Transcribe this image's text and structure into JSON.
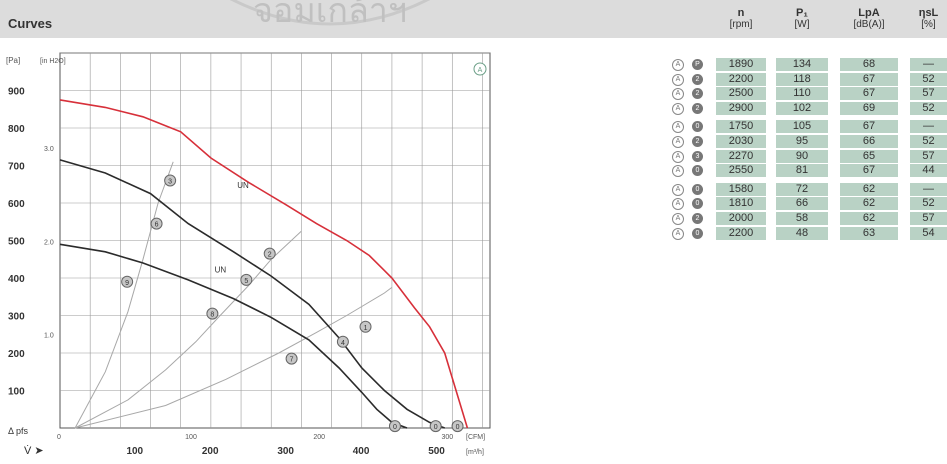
{
  "section_title": "Curves",
  "watermark_text": "จอมเกล้าฯ",
  "chart_data": {
    "type": "line",
    "title": "",
    "ylabel_left": "Δ pfs",
    "ylabel_unit_pa": "[Pa]",
    "ylabel_unit_inh2o": "[in H2O]",
    "xlabel_symbol": "V̇",
    "x_unit_cfm": "[CFM]",
    "x_unit_m3h": "[m³/h]",
    "xlim_m3h": [
      0,
      570
    ],
    "ylim_pa": [
      0,
      1000
    ],
    "y_ticks_pa": [
      "100",
      "200",
      "300",
      "400",
      "500",
      "600",
      "700",
      "800",
      "900"
    ],
    "y_ticks_inh2o": [
      "1.0",
      "2.0",
      "3.0"
    ],
    "x_ticks_m3h": [
      "100",
      "200",
      "300",
      "400",
      "500"
    ],
    "x_ticks_cfm": [
      "0",
      "100",
      "200",
      "300"
    ],
    "grid": true,
    "region_label": "A",
    "curve_labels": [
      "UN",
      "UN"
    ],
    "series": [
      {
        "name": "",
        "color": "#d7303a",
        "x": [
          0,
          60,
          110,
          160,
          200,
          250,
          300,
          340,
          380,
          410,
          440,
          470,
          490,
          510,
          540
        ],
        "y": [
          875,
          855,
          830,
          790,
          720,
          655,
          595,
          545,
          500,
          460,
          400,
          320,
          270,
          200,
          0
        ]
      },
      {
        "name": "",
        "color": "#2b2b2b",
        "x": [
          0,
          60,
          120,
          170,
          230,
          280,
          330,
          370,
          400,
          430,
          460,
          490,
          510
        ],
        "y": [
          715,
          680,
          625,
          545,
          470,
          405,
          330,
          240,
          160,
          100,
          50,
          15,
          0
        ]
      },
      {
        "name": "",
        "color": "#2b2b2b",
        "x": [
          0,
          60,
          110,
          170,
          230,
          280,
          330,
          370,
          400,
          420,
          440,
          460
        ],
        "y": [
          490,
          470,
          440,
          395,
          345,
          295,
          235,
          160,
          95,
          50,
          15,
          0
        ]
      }
    ],
    "system_curves": [
      {
        "x": [
          20,
          60,
          90,
          110,
          130,
          150
        ],
        "y": [
          0,
          150,
          310,
          450,
          600,
          710
        ]
      },
      {
        "x": [
          20,
          90,
          140,
          180,
          210,
          250,
          280,
          320
        ],
        "y": [
          0,
          75,
          155,
          230,
          295,
          380,
          450,
          525
        ]
      },
      {
        "x": [
          20,
          140,
          220,
          290,
          340,
          380,
          430,
          440
        ],
        "y": [
          0,
          60,
          130,
          200,
          255,
          300,
          360,
          375
        ]
      }
    ],
    "markers": [
      {
        "label": "3",
        "x": 146,
        "y": 660
      },
      {
        "label": "6",
        "x": 128,
        "y": 545
      },
      {
        "label": "9",
        "x": 89,
        "y": 390
      },
      {
        "label": "2",
        "x": 278,
        "y": 465
      },
      {
        "label": "5",
        "x": 247,
        "y": 395
      },
      {
        "label": "8",
        "x": 202,
        "y": 305
      },
      {
        "label": "1",
        "x": 405,
        "y": 270
      },
      {
        "label": "4",
        "x": 375,
        "y": 230
      },
      {
        "label": "7",
        "x": 307,
        "y": 185
      },
      {
        "label": "0",
        "x": 527,
        "y": 5
      },
      {
        "label": "0",
        "x": 498,
        "y": 5
      },
      {
        "label": "0",
        "x": 444,
        "y": 5
      }
    ]
  },
  "table": {
    "headers": [
      {
        "title": "n",
        "unit": "[rpm]"
      },
      {
        "title": "P₁",
        "unit": "[W]"
      },
      {
        "title": "LpA",
        "unit": "[dB(A)]"
      },
      {
        "title": "ηsL",
        "unit": "[%]"
      }
    ],
    "rows": [
      {
        "marker": "P",
        "n": "1890",
        "p": "134",
        "lpa": "68",
        "eta": "—"
      },
      {
        "marker": "2",
        "n": "2200",
        "p": "118",
        "lpa": "67",
        "eta": "52"
      },
      {
        "marker": "2",
        "n": "2500",
        "p": "110",
        "lpa": "67",
        "eta": "57"
      },
      {
        "marker": "2",
        "n": "2900",
        "p": "102",
        "lpa": "69",
        "eta": "52"
      },
      {
        "marker": "0",
        "n": "1750",
        "p": "105",
        "lpa": "67",
        "eta": "—"
      },
      {
        "marker": "2",
        "n": "2030",
        "p": "95",
        "lpa": "66",
        "eta": "52"
      },
      {
        "marker": "3",
        "n": "2270",
        "p": "90",
        "lpa": "65",
        "eta": "57"
      },
      {
        "marker": "0",
        "n": "2550",
        "p": "81",
        "lpa": "67",
        "eta": "44"
      },
      {
        "marker": "0",
        "n": "1580",
        "p": "72",
        "lpa": "62",
        "eta": "—"
      },
      {
        "marker": "0",
        "n": "1810",
        "p": "66",
        "lpa": "62",
        "eta": "52"
      },
      {
        "marker": "2",
        "n": "2000",
        "p": "58",
        "lpa": "62",
        "eta": "57"
      },
      {
        "marker": "0",
        "n": "2200",
        "p": "48",
        "lpa": "63",
        "eta": "54"
      }
    ],
    "row_marker_a": "A"
  }
}
